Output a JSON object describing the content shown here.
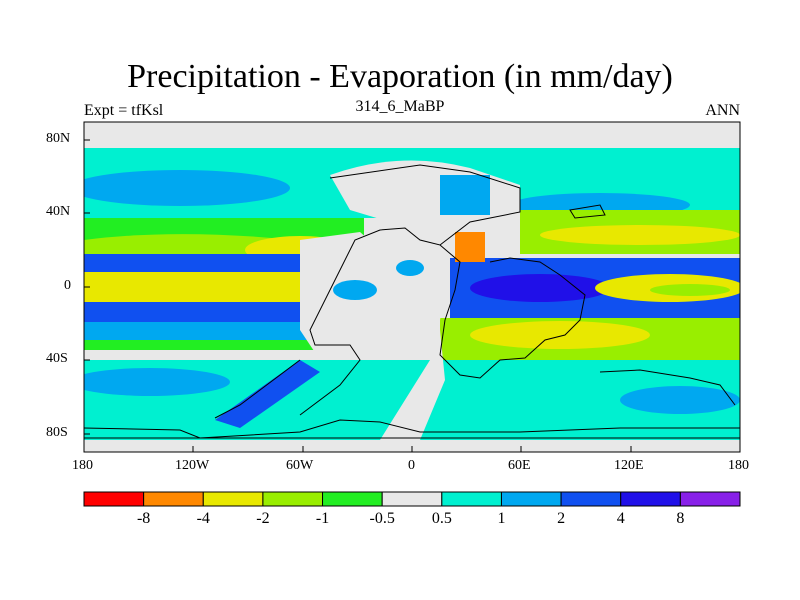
{
  "title": "Precipitation - Evaporation (in mm/day)",
  "subtitle": "314_6_MaBP",
  "left_label": "Expt = tfKsl",
  "right_label": "ANN",
  "lat_ticks": [
    "80N",
    "40N",
    "0",
    "40S",
    "80S"
  ],
  "lon_ticks": [
    "180",
    "120W",
    "60W",
    "0",
    "60E",
    "120E",
    "180"
  ],
  "colorbar": {
    "colors": [
      "#ff0000",
      "#ff8800",
      "#e8e800",
      "#99ee00",
      "#22ee22",
      "#e8e8e8",
      "#00f0d0",
      "#00a8f0",
      "#1050f0",
      "#2010e8",
      "#8820e8"
    ],
    "labels": [
      "-8",
      "-4",
      "-2",
      "-1",
      "-0.5",
      "0.5",
      "1",
      "2",
      "4",
      "8"
    ]
  }
}
